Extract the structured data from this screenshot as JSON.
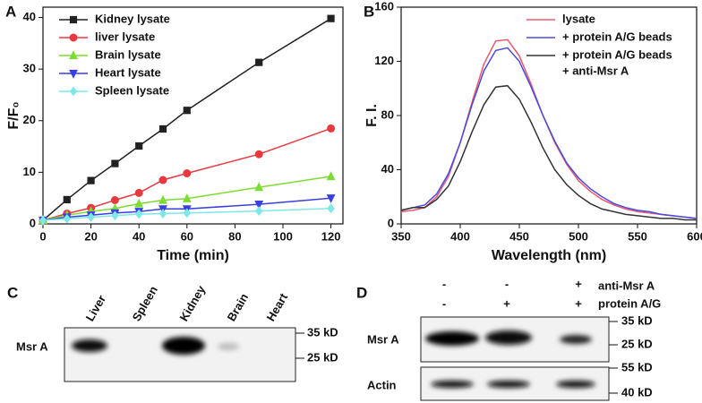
{
  "chart_data": [
    {
      "type": "line",
      "panel": "A",
      "x_label": "Time (min)",
      "y_label": "F/F₀",
      "x": [
        0,
        10,
        20,
        30,
        40,
        50,
        60,
        90,
        120
      ],
      "xlim": [
        0,
        125
      ],
      "xticks": [
        0,
        20,
        40,
        60,
        80,
        100,
        120
      ],
      "ylim": [
        0,
        42
      ],
      "yticks": [
        0,
        10,
        20,
        30,
        40
      ],
      "legend": "upper left",
      "series": [
        {
          "name": "Kidney lysate",
          "color": "#222222",
          "marker": "square",
          "values": [
            0.7,
            4.7,
            8.4,
            11.7,
            15.1,
            18.4,
            22.0,
            31.3,
            39.8
          ]
        },
        {
          "name": "liver  lysate",
          "color": "#e8393f",
          "marker": "circle",
          "values": [
            0.7,
            2.0,
            3.1,
            4.6,
            6.0,
            8.5,
            9.8,
            13.5,
            18.5
          ]
        },
        {
          "name": "Brain lysate",
          "color": "#7ddc34",
          "marker": "triangle-up",
          "values": [
            0.7,
            1.7,
            2.4,
            3.0,
            3.9,
            4.6,
            4.9,
            7.1,
            9.2
          ]
        },
        {
          "name": "Heart lysate",
          "color": "#3a3fe0",
          "marker": "triangle-down",
          "values": [
            0.7,
            1.3,
            1.7,
            2.1,
            2.4,
            2.9,
            2.9,
            3.8,
            5.0
          ]
        },
        {
          "name": "Spleen lysate",
          "color": "#7de8e8",
          "marker": "diamond",
          "values": [
            0.7,
            1.0,
            1.3,
            1.6,
            1.9,
            2.0,
            2.1,
            2.5,
            3.0
          ]
        }
      ]
    },
    {
      "type": "line",
      "panel": "B",
      "x_label": "Wavelength (nm)",
      "y_label": "F. I.",
      "x": [
        350,
        360,
        370,
        380,
        390,
        400,
        410,
        420,
        430,
        440,
        450,
        460,
        470,
        480,
        490,
        500,
        510,
        520,
        530,
        540,
        550,
        560,
        570,
        580,
        590,
        600
      ],
      "xlim": [
        350,
        600
      ],
      "xticks": [
        350,
        400,
        450,
        500,
        550,
        600
      ],
      "ylim": [
        0,
        160
      ],
      "yticks": [
        0,
        40,
        80,
        120,
        160
      ],
      "legend": "upper right",
      "series": [
        {
          "name": "lysate",
          "color": "#e85a6e",
          "values": [
            9,
            10,
            12,
            20,
            35,
            60,
            90,
            118,
            135,
            136,
            124,
            103,
            80,
            60,
            44,
            32,
            24,
            18,
            14,
            11,
            9,
            8,
            7,
            6,
            5,
            4
          ]
        },
        {
          "name": "+ protein A/G beads",
          "color": "#4a4ae0",
          "values": [
            10,
            12,
            14,
            22,
            37,
            60,
            88,
            113,
            128,
            130,
            120,
            101,
            80,
            61,
            45,
            34,
            26,
            20,
            15,
            12,
            10,
            9,
            7,
            6,
            5,
            4
          ]
        },
        {
          "name": "+ protein A/G beads",
          "name_line2": "+ anti-Msr A",
          "color": "#333333",
          "values": [
            10,
            12,
            12,
            18,
            28,
            46,
            68,
            88,
            101,
            102,
            92,
            75,
            56,
            40,
            29,
            21,
            15,
            11,
            9,
            7,
            6,
            5,
            4,
            4,
            3,
            3
          ]
        }
      ]
    }
  ],
  "blots": {
    "c": {
      "panel": "C",
      "lanes": [
        "Liver",
        "Spleen",
        "Kidney",
        "Brain",
        "Heart"
      ],
      "row": "Msr A",
      "markers": [
        "35 kD",
        "25 kD"
      ]
    },
    "d": {
      "panel": "D",
      "conditions": [
        {
          "name": "anti-Msr A",
          "signs": [
            "-",
            "-",
            "+"
          ]
        },
        {
          "name": "protein A/G",
          "signs": [
            "-",
            "+",
            "+"
          ]
        }
      ],
      "rows": [
        {
          "name": "Msr A",
          "markers": [
            "35 kD",
            "25 kD"
          ]
        },
        {
          "name": "Actin",
          "markers": [
            "55 kD",
            "40 kD"
          ]
        }
      ]
    }
  }
}
